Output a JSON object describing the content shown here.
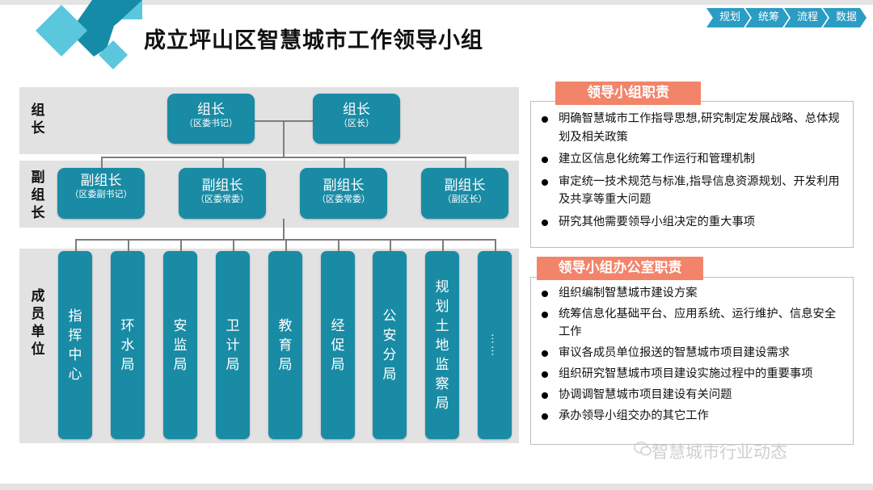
{
  "title": "成立坪山区智慧城市工作领导小组",
  "nav": [
    "规划",
    "统筹",
    "流程",
    "数据"
  ],
  "colors": {
    "box": "#1a8ba5",
    "band": "#e2e2e2",
    "panel_title": "#f2846a",
    "nav": "#2b9cc4",
    "accent_dark": "#168ba8",
    "accent_light": "#5bc7dd"
  },
  "bands": {
    "leaders": "组长",
    "deputies": "副组长",
    "members": "成员单位"
  },
  "leaders": [
    {
      "title": "组长",
      "note": "（区委书记）"
    },
    {
      "title": "组长",
      "note": "（区长）"
    }
  ],
  "deputies": [
    {
      "title": "副组长",
      "note": "（区委副书记）"
    },
    {
      "title": "副组长",
      "note": "（区委常委）"
    },
    {
      "title": "副组长",
      "note": "（区委常委）"
    },
    {
      "title": "副组长",
      "note": "（副区长）"
    }
  ],
  "members": [
    "指挥中心",
    "环水局",
    "安监局",
    "卫计局",
    "教育局",
    "经促局",
    "公安分局",
    "规划土地监察局",
    "……"
  ],
  "responsibilities": {
    "title": "领导小组职责",
    "items": [
      "明确智慧城市工作指导思想,研究制定发展战略、总体规划及相关政策",
      "建立区信息化统筹工作运行和管理机制",
      "审定统一技术规范与标准,指导信息资源规划、开发利用及共享等重大问题",
      "研究其他需要领导小组决定的重大事项"
    ]
  },
  "office": {
    "title": "领导小组办公室职责",
    "items": [
      "组织编制智慧城市建设方案",
      "统筹信息化基础平台、应用系统、运行维护、信息安全工作",
      "审议各成员单位报送的智慧城市项目建设需求",
      "组织研究智慧城市项目建设实施过程中的重要事项",
      "协调调智慧城市项目建设有关问题",
      "承办领导小组交办的其它工作"
    ]
  },
  "watermark": "智慧城市行业动态"
}
